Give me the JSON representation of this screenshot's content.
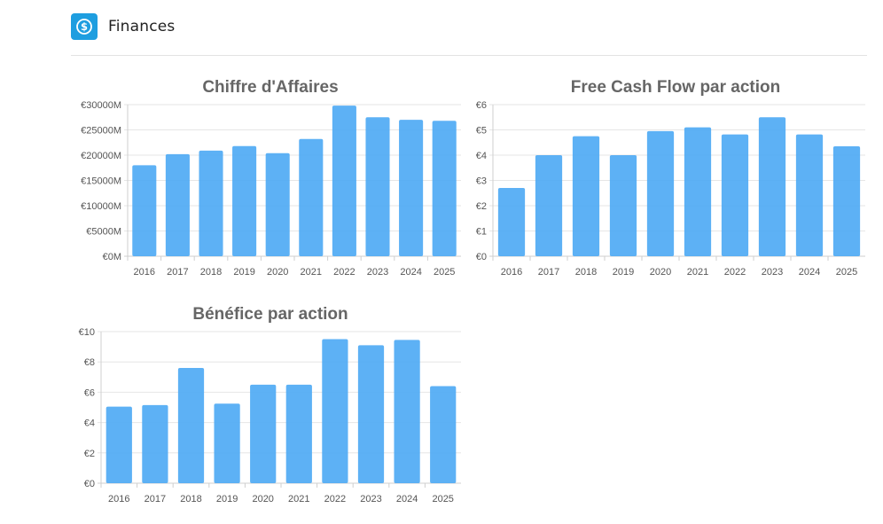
{
  "header": {
    "title": "Finances",
    "icon": "dollar-circle-icon",
    "icon_color": "#1e9ee0"
  },
  "bar_color": "#4faaf4",
  "chart_data": [
    {
      "type": "bar",
      "title": "Chiffre d'Affaires",
      "categories": [
        "2016",
        "2017",
        "2018",
        "2019",
        "2020",
        "2021",
        "2022",
        "2023",
        "2024",
        "2025"
      ],
      "values": [
        18000,
        20200,
        20900,
        21800,
        20400,
        23200,
        29800,
        27500,
        27000,
        26800
      ],
      "ylim": [
        0,
        30000
      ],
      "yticks": [
        0,
        5000,
        10000,
        15000,
        20000,
        25000,
        30000
      ],
      "ytick_labels": [
        "€0M",
        "€5000M",
        "€10000M",
        "€15000M",
        "€20000M",
        "€25000M",
        "€30000M"
      ],
      "grid": true
    },
    {
      "type": "bar",
      "title": "Free Cash Flow par action",
      "categories": [
        "2016",
        "2017",
        "2018",
        "2019",
        "2020",
        "2021",
        "2022",
        "2023",
        "2024",
        "2025"
      ],
      "values": [
        2.7,
        4.0,
        4.75,
        4.0,
        4.95,
        5.1,
        4.82,
        5.5,
        4.82,
        4.35
      ],
      "ylim": [
        0,
        6
      ],
      "yticks": [
        0,
        1,
        2,
        3,
        4,
        5,
        6
      ],
      "ytick_labels": [
        "€0",
        "€1",
        "€2",
        "€3",
        "€4",
        "€5",
        "€6"
      ],
      "grid": true
    },
    {
      "type": "bar",
      "title": "Bénéfice par action",
      "categories": [
        "2016",
        "2017",
        "2018",
        "2019",
        "2020",
        "2021",
        "2022",
        "2023",
        "2024",
        "2025"
      ],
      "values": [
        5.05,
        5.15,
        7.6,
        5.25,
        6.5,
        6.5,
        9.5,
        9.1,
        9.45,
        6.4
      ],
      "ylim": [
        0,
        10
      ],
      "yticks": [
        0,
        2,
        4,
        6,
        8,
        10
      ],
      "ytick_labels": [
        "€0",
        "€2",
        "€4",
        "€6",
        "€8",
        "€10"
      ],
      "grid": true
    }
  ]
}
